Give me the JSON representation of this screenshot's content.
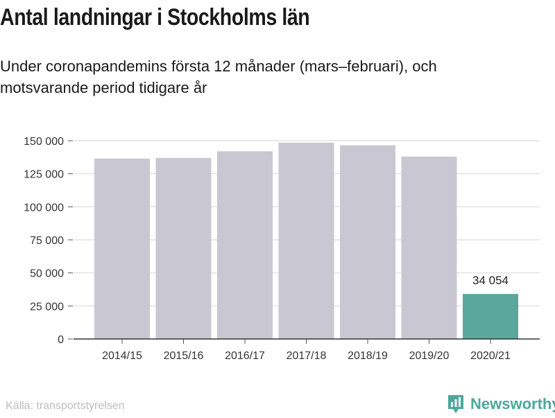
{
  "title": "Antal landningar i Stockholms län",
  "subtitle": "Under coronapandemins första 12 månader (mars–februari), och motsvarande period tidigare år",
  "source": "Källa: transportstyrelsen",
  "brand": {
    "name": "Newsworthy",
    "icon": "newsworthy-logo-icon",
    "color": "#4aa89a"
  },
  "chart_data": {
    "type": "bar",
    "title": "Antal landningar i Stockholms län",
    "xlabel": "",
    "ylabel": "",
    "categories": [
      "2014/15",
      "2015/16",
      "2016/17",
      "2017/18",
      "2018/19",
      "2019/20",
      "2020/21"
    ],
    "values": [
      136500,
      137000,
      142000,
      148500,
      146500,
      138000,
      34054
    ],
    "ylim": [
      0,
      150000
    ],
    "yticks": [
      0,
      25000,
      50000,
      75000,
      100000,
      125000,
      150000
    ],
    "ytick_labels": [
      "0",
      "25 000",
      "50 000",
      "75 000",
      "100 000",
      "125 000",
      "150 000"
    ],
    "grid": true,
    "bar_color": "#c9c7d2",
    "highlight_color": "#5aa79c",
    "highlight_index": 6,
    "data_labels": [
      {
        "index": 6,
        "text": "34 054"
      }
    ]
  }
}
